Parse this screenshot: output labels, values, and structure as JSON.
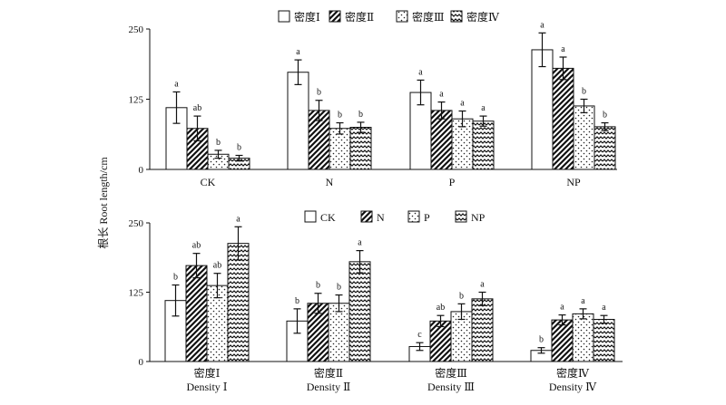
{
  "y_axis_label": "根长 Root length/cm",
  "chart_data": [
    {
      "type": "bar",
      "title": "",
      "xlabel": "",
      "ylabel": "根长 Root length/cm",
      "ylim": [
        0,
        250
      ],
      "yticks": [
        "0",
        "125",
        "250"
      ],
      "legend_position": "top",
      "grid": false,
      "categories": [
        "CK",
        "N",
        "P",
        "NP"
      ],
      "series": [
        {
          "name": "密度Ⅰ",
          "pattern": "plain",
          "values": [
            110,
            173,
            137,
            213
          ],
          "errors": [
            28,
            22,
            22,
            30
          ],
          "letters": [
            "a",
            "a",
            "a",
            "a"
          ]
        },
        {
          "name": "密度Ⅱ",
          "pattern": "diag",
          "values": [
            73,
            105,
            105,
            180
          ],
          "errors": [
            22,
            18,
            15,
            20
          ],
          "letters": [
            "ab",
            "b",
            "a",
            "a"
          ]
        },
        {
          "name": "密度Ⅲ",
          "pattern": "dots",
          "values": [
            27,
            73,
            90,
            113
          ],
          "errors": [
            7,
            10,
            14,
            12
          ],
          "letters": [
            "b",
            "b",
            "a",
            "b"
          ]
        },
        {
          "name": "密度Ⅳ",
          "pattern": "wave",
          "values": [
            20,
            75,
            86,
            76
          ],
          "errors": [
            5,
            9,
            9,
            7
          ],
          "letters": [
            "b",
            "b",
            "a",
            "b"
          ]
        }
      ]
    },
    {
      "type": "bar",
      "title": "",
      "xlabel": "",
      "ylabel": "根长 Root length/cm",
      "ylim": [
        0,
        250
      ],
      "yticks": [
        "0",
        "125",
        "250"
      ],
      "legend_position": "top",
      "grid": false,
      "categories": [
        "密度Ⅰ",
        "密度Ⅱ",
        "密度Ⅲ",
        "密度Ⅳ"
      ],
      "categories_en": [
        "Density Ⅰ",
        "Density  Ⅱ",
        "Density Ⅲ",
        "Density Ⅳ"
      ],
      "series": [
        {
          "name": "CK",
          "pattern": "plain",
          "values": [
            110,
            73,
            27,
            20
          ],
          "errors": [
            28,
            22,
            7,
            5
          ],
          "letters": [
            "b",
            "b",
            "c",
            "b"
          ]
        },
        {
          "name": "N",
          "pattern": "diag",
          "values": [
            173,
            105,
            73,
            75
          ],
          "errors": [
            22,
            18,
            10,
            9
          ],
          "letters": [
            "ab",
            "b",
            "ab",
            "a"
          ]
        },
        {
          "name": "P",
          "pattern": "dots",
          "values": [
            137,
            105,
            90,
            86
          ],
          "errors": [
            22,
            15,
            14,
            9
          ],
          "letters": [
            "ab",
            "b",
            "b",
            "a"
          ]
        },
        {
          "name": "NP",
          "pattern": "wave",
          "values": [
            213,
            180,
            113,
            76
          ],
          "errors": [
            30,
            20,
            12,
            7
          ],
          "letters": [
            "a",
            "a",
            "a",
            "a"
          ]
        }
      ]
    }
  ]
}
